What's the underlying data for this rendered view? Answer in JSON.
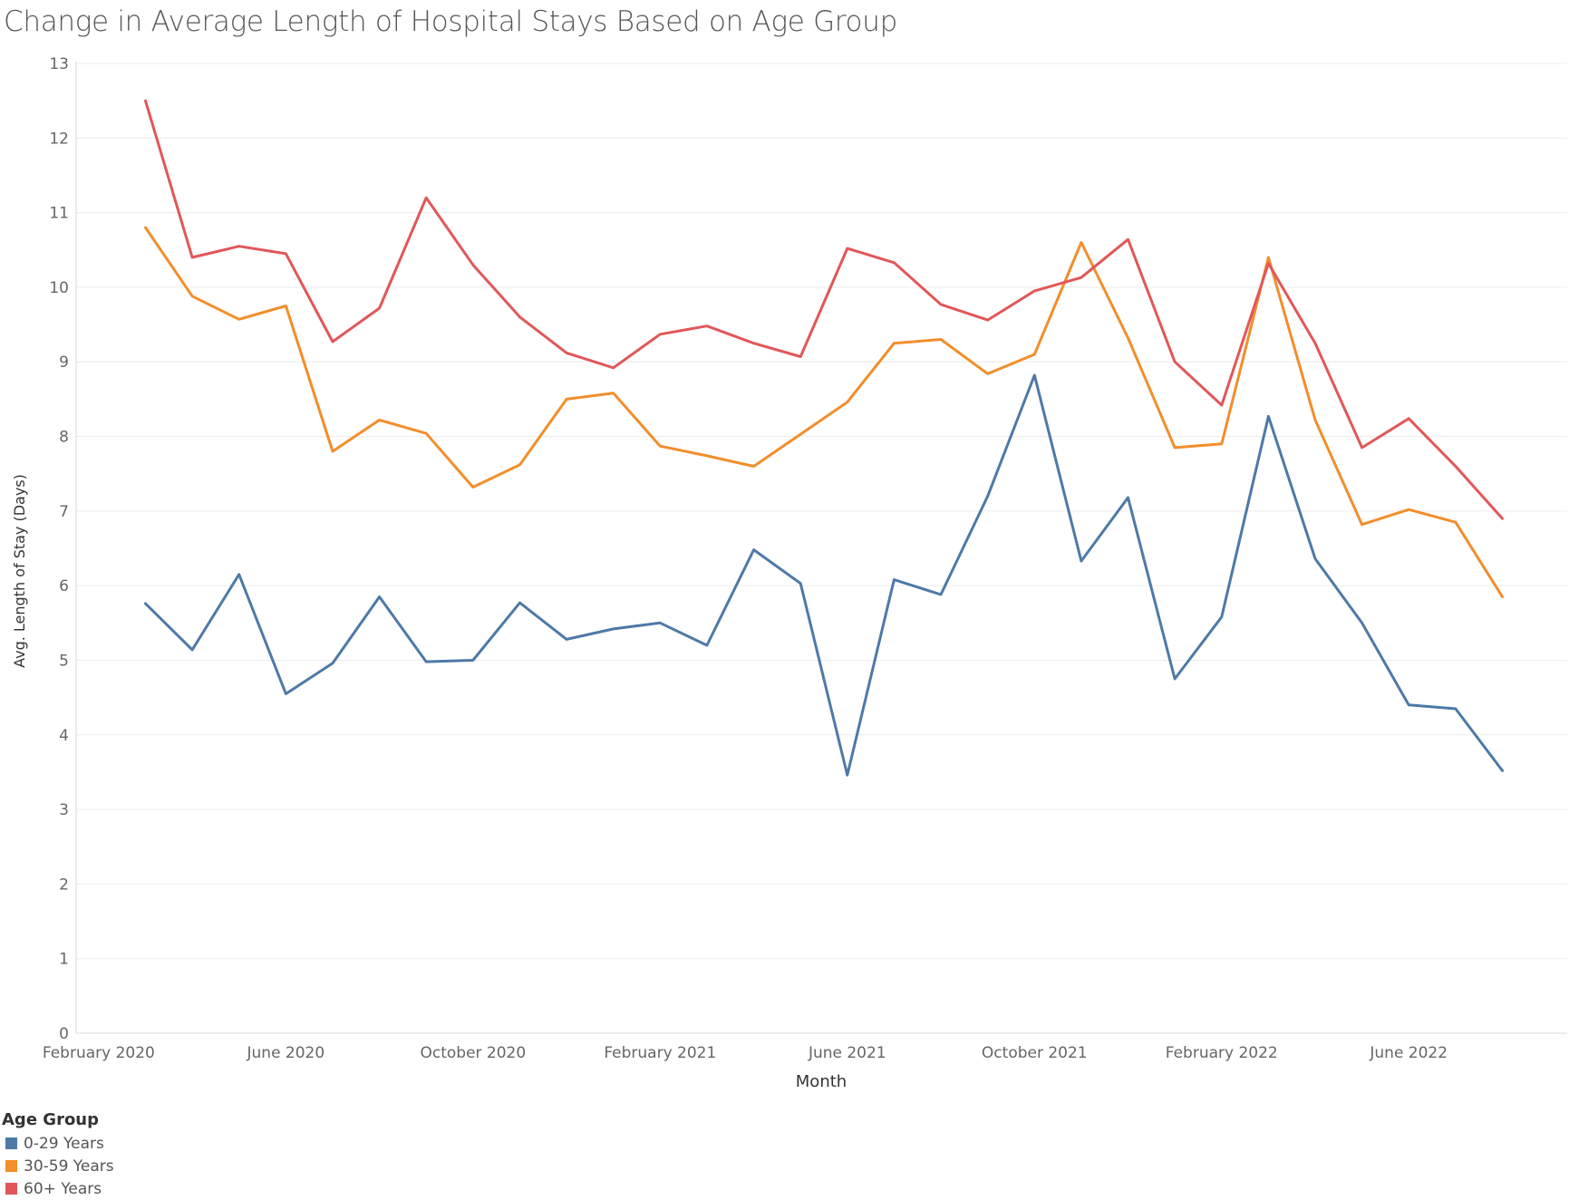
{
  "chart_data": {
    "type": "line",
    "title": "Change in Average Length of Hospital Stays Based on Age Group",
    "xlabel": "Month",
    "ylabel": "Avg. Length of Stay (Days)",
    "ylim": [
      0,
      13
    ],
    "yticks": [
      0,
      1,
      2,
      3,
      4,
      5,
      6,
      7,
      8,
      9,
      10,
      11,
      12,
      13
    ],
    "x_tick_labels": [
      "February 2020",
      "June 2020",
      "October 2020",
      "February 2021",
      "June 2021",
      "October 2021",
      "February 2022",
      "June 2022"
    ],
    "x_tick_months": [
      "2020-02",
      "2020-06",
      "2020-10",
      "2021-02",
      "2021-06",
      "2021-10",
      "2022-02",
      "2022-06"
    ],
    "x": [
      "2020-03",
      "2020-04",
      "2020-05",
      "2020-06",
      "2020-07",
      "2020-08",
      "2020-09",
      "2020-10",
      "2020-11",
      "2020-12",
      "2021-01",
      "2021-02",
      "2021-03",
      "2021-04",
      "2021-05",
      "2021-06",
      "2021-07",
      "2021-08",
      "2021-09",
      "2021-10",
      "2021-11",
      "2021-12",
      "2022-01",
      "2022-02",
      "2022-03",
      "2022-04",
      "2022-05",
      "2022-06",
      "2022-07",
      "2022-08"
    ],
    "grid": "horizontal",
    "legend_title": "Age Group",
    "legend_position": "bottom-left",
    "series": [
      {
        "name": "0-29 Years",
        "color": "#4e79a7",
        "values": [
          5.76,
          5.14,
          6.15,
          4.55,
          4.96,
          5.85,
          4.98,
          5.0,
          5.77,
          5.28,
          5.42,
          5.5,
          5.2,
          6.48,
          6.03,
          3.46,
          6.08,
          5.88,
          7.2,
          8.82,
          6.33,
          7.18,
          4.75,
          5.58,
          8.27,
          6.36,
          5.5,
          4.4,
          4.35,
          3.52
        ]
      },
      {
        "name": "30-59 Years",
        "color": "#f28e2b",
        "values": [
          10.8,
          9.88,
          9.57,
          9.75,
          7.8,
          8.22,
          8.04,
          7.32,
          7.62,
          8.5,
          8.58,
          7.87,
          7.74,
          7.6,
          8.03,
          8.46,
          9.25,
          9.3,
          8.84,
          9.1,
          10.6,
          9.32,
          7.85,
          7.9,
          10.4,
          8.22,
          6.82,
          7.02,
          6.85,
          5.85
        ]
      },
      {
        "name": "60+ Years",
        "color": "#e15759",
        "values": [
          12.5,
          10.4,
          10.55,
          10.45,
          9.27,
          9.72,
          11.2,
          10.3,
          9.6,
          9.12,
          8.92,
          9.37,
          9.48,
          9.25,
          9.07,
          10.52,
          10.33,
          9.77,
          9.56,
          9.95,
          10.13,
          10.64,
          9.0,
          8.42,
          10.32,
          9.25,
          7.85,
          8.24,
          7.6,
          6.9
        ]
      }
    ]
  }
}
